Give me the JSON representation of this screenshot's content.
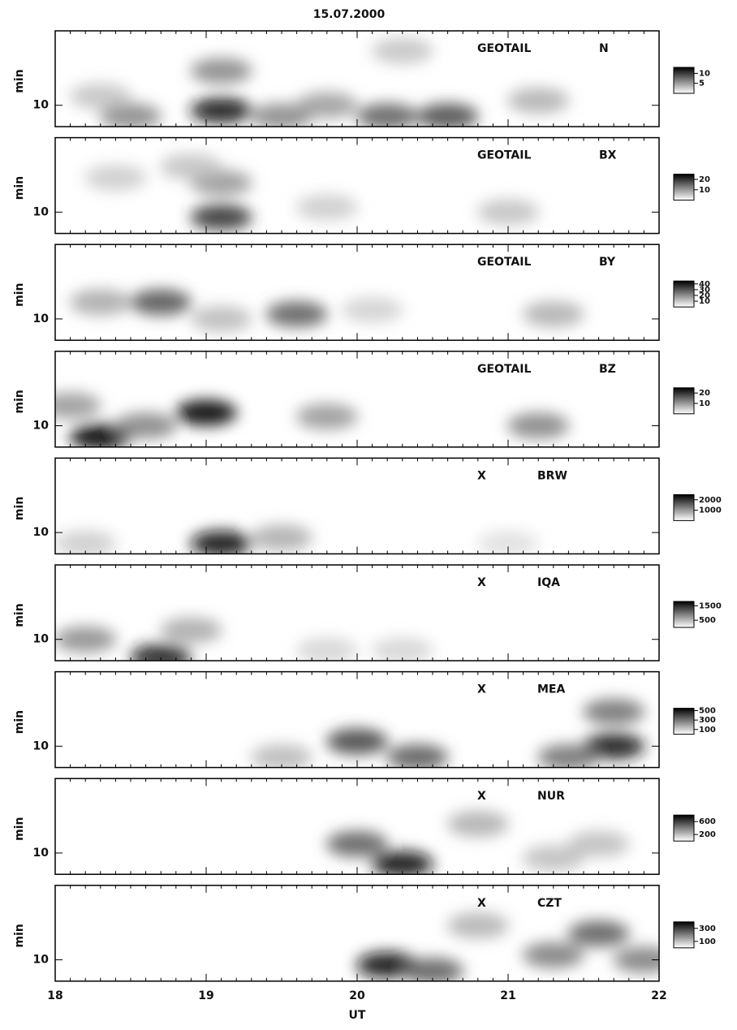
{
  "chart_data": {
    "type": "heatmap",
    "title": "15.07.2000",
    "xlabel": "UT",
    "xlim": [
      18,
      22
    ],
    "xticks": [
      18,
      19,
      20,
      21,
      22
    ],
    "xminor": 0.1,
    "ylabel": "min",
    "ylim": [
      6.5,
      45
    ],
    "yticks": [
      10
    ],
    "ylog": true,
    "panels": [
      {
        "source": "GEOTAIL",
        "parameter": "N",
        "clim": [
          0,
          13
        ],
        "cticks": [
          10,
          5
        ],
        "peaks": [
          {
            "x": 19.1,
            "y": 9,
            "value": 12
          },
          {
            "x": 19.1,
            "y": 20,
            "value": 6
          },
          {
            "x": 18.5,
            "y": 8,
            "value": 6
          },
          {
            "x": 20.2,
            "y": 8,
            "value": 8
          },
          {
            "x": 20.6,
            "y": 8,
            "value": 9
          },
          {
            "x": 19.5,
            "y": 8,
            "value": 6
          },
          {
            "x": 21.2,
            "y": 11,
            "value": 4
          },
          {
            "x": 19.8,
            "y": 10,
            "value": 5
          },
          {
            "x": 18.3,
            "y": 12,
            "value": 3
          },
          {
            "x": 20.3,
            "y": 30,
            "value": 3
          }
        ]
      },
      {
        "source": "GEOTAIL",
        "parameter": "BX",
        "clim": [
          0,
          25
        ],
        "cticks": [
          20,
          10
        ],
        "peaks": [
          {
            "x": 19.1,
            "y": 9,
            "value": 20
          },
          {
            "x": 19.1,
            "y": 18,
            "value": 10
          },
          {
            "x": 18.4,
            "y": 20,
            "value": 5
          },
          {
            "x": 19.8,
            "y": 11,
            "value": 5
          },
          {
            "x": 21.0,
            "y": 10,
            "value": 6
          },
          {
            "x": 18.9,
            "y": 25,
            "value": 6
          }
        ]
      },
      {
        "source": "GEOTAIL",
        "parameter": "BY",
        "clim": [
          0,
          45
        ],
        "cticks": [
          40,
          30,
          20,
          10
        ],
        "peaks": [
          {
            "x": 18.7,
            "y": 14,
            "value": 30
          },
          {
            "x": 19.6,
            "y": 11,
            "value": 28
          },
          {
            "x": 18.3,
            "y": 14,
            "value": 15
          },
          {
            "x": 19.1,
            "y": 10,
            "value": 12
          },
          {
            "x": 21.3,
            "y": 11,
            "value": 14
          },
          {
            "x": 20.1,
            "y": 12,
            "value": 8
          }
        ]
      },
      {
        "source": "GEOTAIL",
        "parameter": "BZ",
        "clim": [
          0,
          25
        ],
        "cticks": [
          20,
          10
        ],
        "peaks": [
          {
            "x": 18.3,
            "y": 8,
            "value": 25
          },
          {
            "x": 19.0,
            "y": 13,
            "value": 25
          },
          {
            "x": 18.6,
            "y": 10,
            "value": 12
          },
          {
            "x": 19.8,
            "y": 12,
            "value": 10
          },
          {
            "x": 21.2,
            "y": 10,
            "value": 12
          },
          {
            "x": 18.1,
            "y": 15,
            "value": 10
          }
        ]
      },
      {
        "source": "X",
        "parameter": "BRW",
        "clim": [
          0,
          2500
        ],
        "cticks": [
          2000,
          1000
        ],
        "peaks": [
          {
            "x": 19.1,
            "y": 8,
            "value": 2400
          },
          {
            "x": 18.2,
            "y": 8,
            "value": 500
          },
          {
            "x": 19.5,
            "y": 9,
            "value": 800
          },
          {
            "x": 21.0,
            "y": 8,
            "value": 300
          }
        ]
      },
      {
        "source": "X",
        "parameter": "IQA",
        "clim": [
          0,
          1800
        ],
        "cticks": [
          1500,
          500
        ],
        "peaks": [
          {
            "x": 18.7,
            "y": 7,
            "value": 1600
          },
          {
            "x": 18.2,
            "y": 10,
            "value": 800
          },
          {
            "x": 18.9,
            "y": 12,
            "value": 600
          },
          {
            "x": 19.8,
            "y": 8,
            "value": 300
          },
          {
            "x": 20.3,
            "y": 8,
            "value": 300
          }
        ]
      },
      {
        "source": "X",
        "parameter": "MEA",
        "clim": [
          0,
          550
        ],
        "cticks": [
          500,
          300,
          100
        ],
        "peaks": [
          {
            "x": 20.0,
            "y": 11,
            "value": 400
          },
          {
            "x": 21.7,
            "y": 10,
            "value": 500
          },
          {
            "x": 20.4,
            "y": 8,
            "value": 350
          },
          {
            "x": 21.4,
            "y": 8,
            "value": 300
          },
          {
            "x": 21.7,
            "y": 20,
            "value": 300
          },
          {
            "x": 19.5,
            "y": 8,
            "value": 150
          }
        ]
      },
      {
        "source": "X",
        "parameter": "NUR",
        "clim": [
          0,
          800
        ],
        "cticks": [
          600,
          200
        ],
        "peaks": [
          {
            "x": 20.3,
            "y": 8,
            "value": 750
          },
          {
            "x": 20.0,
            "y": 12,
            "value": 500
          },
          {
            "x": 20.8,
            "y": 18,
            "value": 250
          },
          {
            "x": 21.3,
            "y": 9,
            "value": 200
          },
          {
            "x": 21.6,
            "y": 12,
            "value": 200
          }
        ]
      },
      {
        "source": "X",
        "parameter": "CZT",
        "clim": [
          0,
          400
        ],
        "cticks": [
          300,
          100
        ],
        "peaks": [
          {
            "x": 20.2,
            "y": 9,
            "value": 380
          },
          {
            "x": 20.5,
            "y": 8,
            "value": 250
          },
          {
            "x": 21.3,
            "y": 11,
            "value": 200
          },
          {
            "x": 21.6,
            "y": 17,
            "value": 250
          },
          {
            "x": 21.9,
            "y": 10,
            "value": 200
          },
          {
            "x": 20.8,
            "y": 20,
            "value": 120
          }
        ]
      }
    ]
  }
}
